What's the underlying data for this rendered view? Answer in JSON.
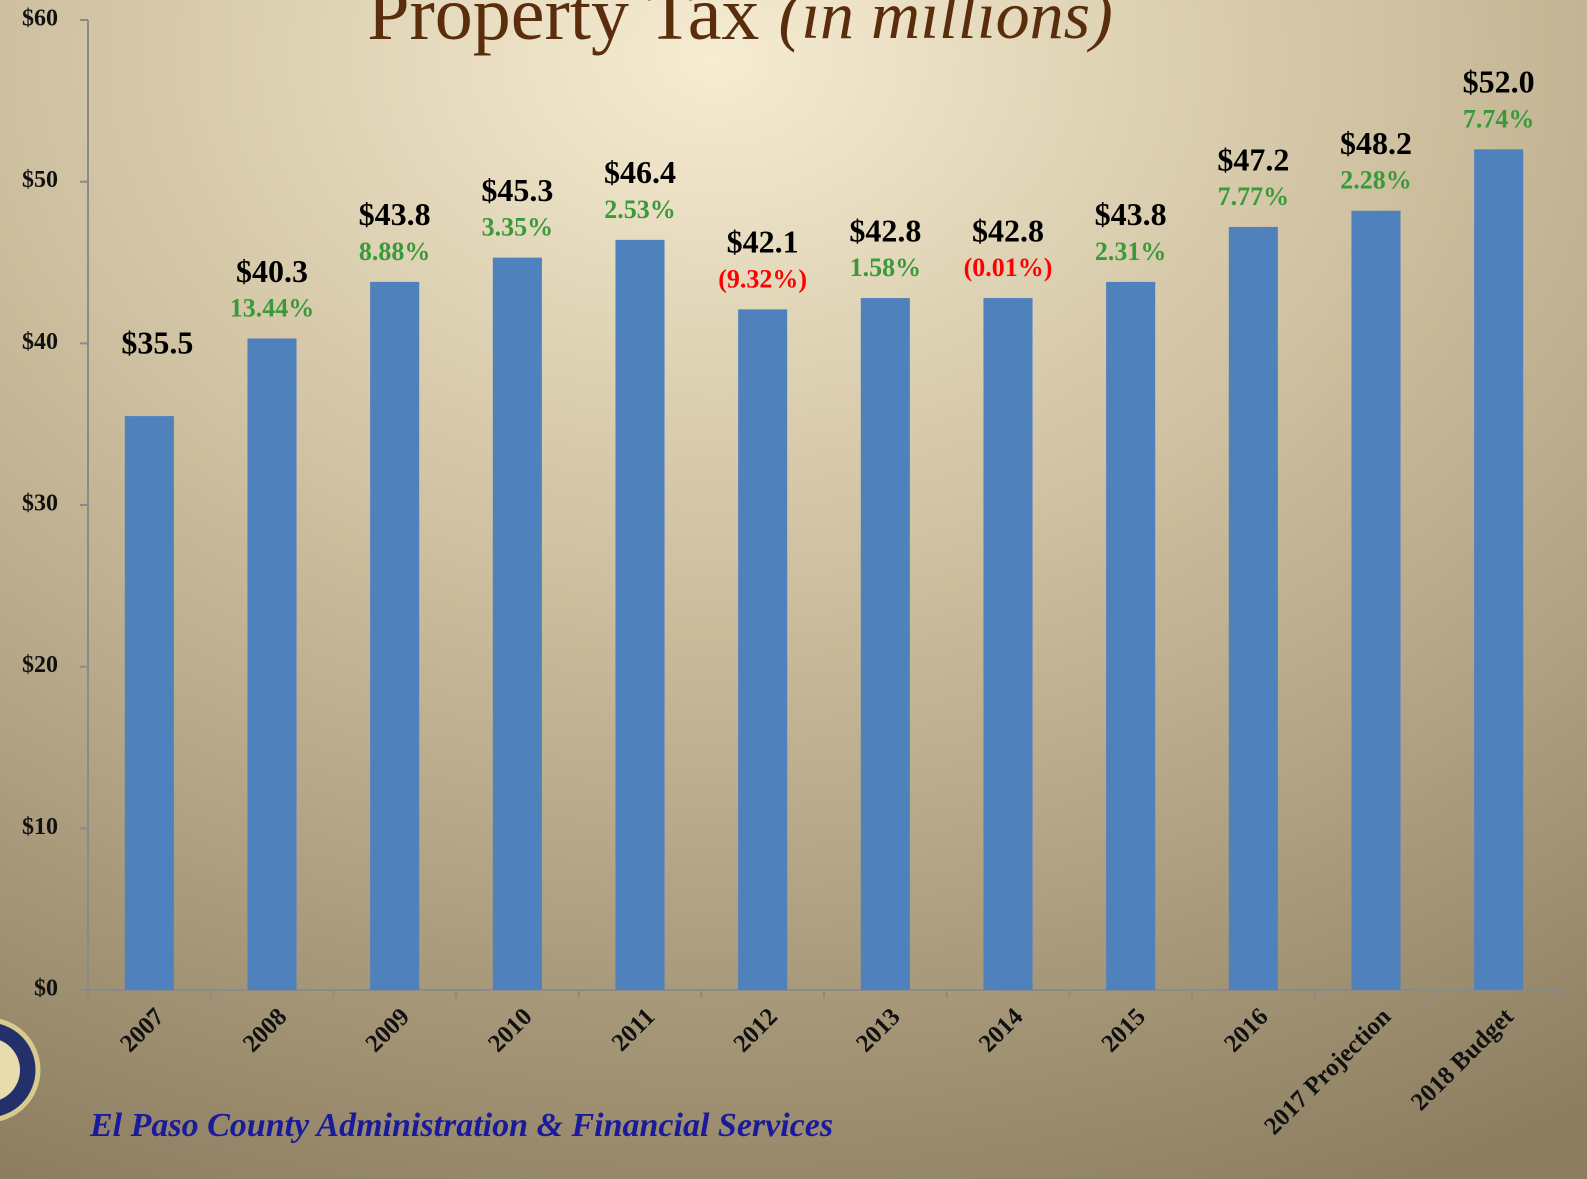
{
  "chart_data": {
    "type": "bar",
    "title": "Property Tax",
    "subtitle": "(in millions)",
    "footer": "El Paso County Administration & Financial Services",
    "categories": [
      "2007",
      "2008",
      "2009",
      "2010",
      "2011",
      "2012",
      "2013",
      "2014",
      "2015",
      "2016",
      "2017 Projection",
      "2018 Budget"
    ],
    "values": [
      35.5,
      40.3,
      43.8,
      45.3,
      46.4,
      42.1,
      42.8,
      42.8,
      43.8,
      47.2,
      48.2,
      52.0
    ],
    "value_labels": [
      "$35.5",
      "$40.3",
      "$43.8",
      "$45.3",
      "$46.4",
      "$42.1",
      "$42.8",
      "$42.8",
      "$43.8",
      "$47.2",
      "$48.2",
      "$52.0"
    ],
    "change": [
      null,
      13.44,
      8.88,
      3.35,
      2.53,
      -9.32,
      1.58,
      -0.01,
      2.31,
      7.77,
      2.28,
      7.74
    ],
    "change_labels": [
      null,
      "13.44%",
      "8.88%",
      "3.35%",
      "2.53%",
      "(9.32%)",
      "1.58%",
      "(0.01%)",
      "2.31%",
      "7.77%",
      "2.28%",
      "7.74%"
    ],
    "color": "#4f81bd",
    "positive_color": "#3a9a3a",
    "negative_color": "#ff0000",
    "ylim": [
      0,
      60
    ],
    "yticks": [
      {
        "value": 0,
        "label": "$0"
      },
      {
        "value": 10,
        "label": "$10"
      },
      {
        "value": 20,
        "label": "$20"
      },
      {
        "value": 30,
        "label": "$30"
      },
      {
        "value": 40,
        "label": "$40"
      },
      {
        "value": 50,
        "label": "$50"
      },
      {
        "value": 60,
        "label": "$60"
      }
    ],
    "grid": false
  }
}
